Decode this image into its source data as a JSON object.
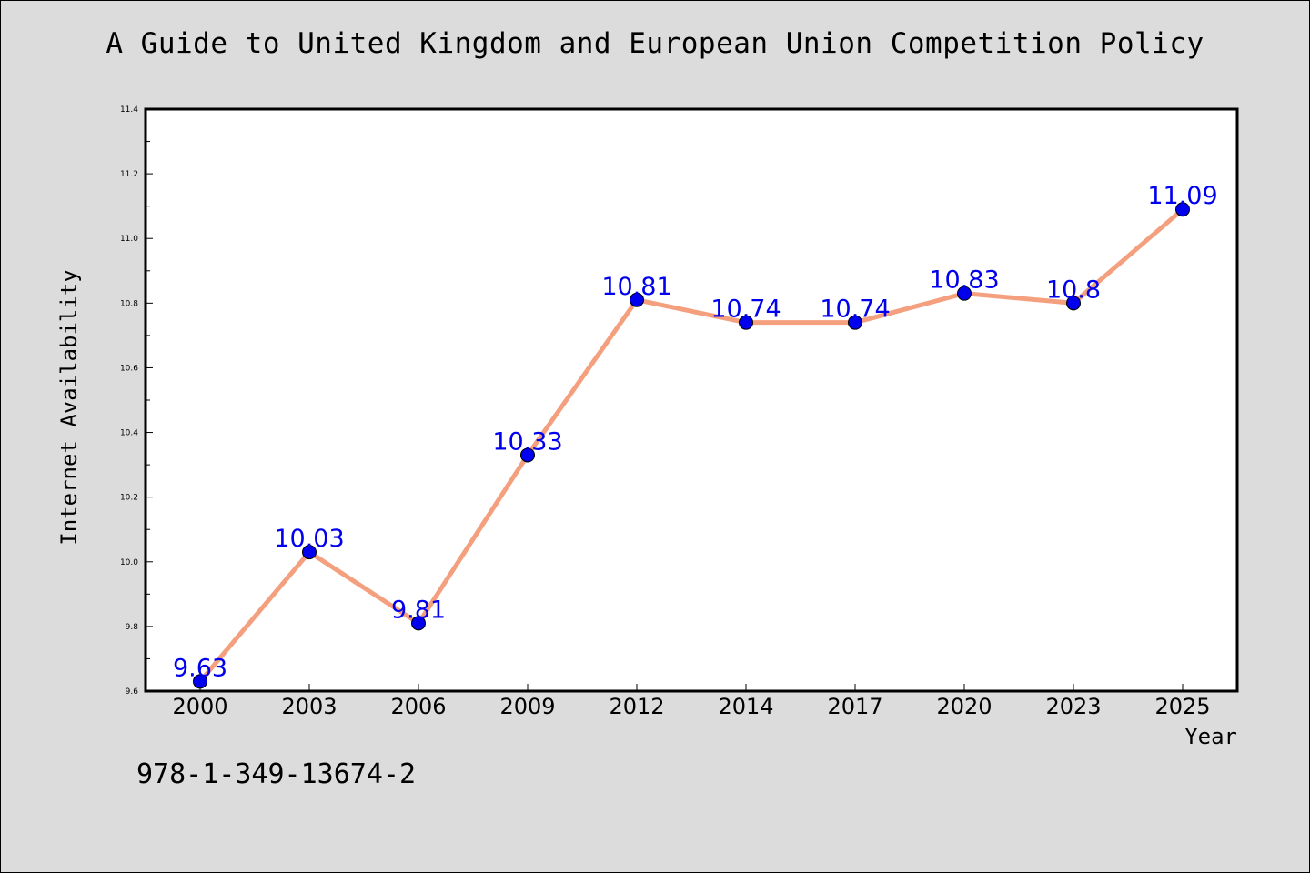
{
  "chart_data": {
    "type": "line",
    "title": "A Guide to United Kingdom and European Union Competition Policy",
    "xlabel": "Year",
    "ylabel": "Internet Availability",
    "categories": [
      "2000",
      "2003",
      "2006",
      "2009",
      "2012",
      "2014",
      "2017",
      "2020",
      "2023",
      "2025"
    ],
    "series": [
      {
        "values": [
          9.63,
          10.03,
          9.81,
          10.33,
          10.81,
          10.74,
          10.74,
          10.83,
          10.8,
          11.09
        ]
      }
    ],
    "data_labels": [
      "9.63",
      "10.03",
      "9.81",
      "10.33",
      "10.81",
      "10.74",
      "10.74",
      "10.83",
      "10.8",
      "11.09"
    ],
    "ylim": [
      9.6,
      11.4
    ],
    "yticks": [
      "9.6",
      "9.8",
      "10.0",
      "10.2",
      "10.4",
      "10.6",
      "10.8",
      "11.0",
      "11.2",
      "11.4"
    ],
    "grid": false,
    "colors": {
      "line": "#f4a07f",
      "marker": "#0000ee",
      "label": "#0000ee",
      "background": "#dcdcdc",
      "plot": "#ffffff"
    }
  },
  "footer": {
    "isbn": "978-1-349-13674-2"
  }
}
